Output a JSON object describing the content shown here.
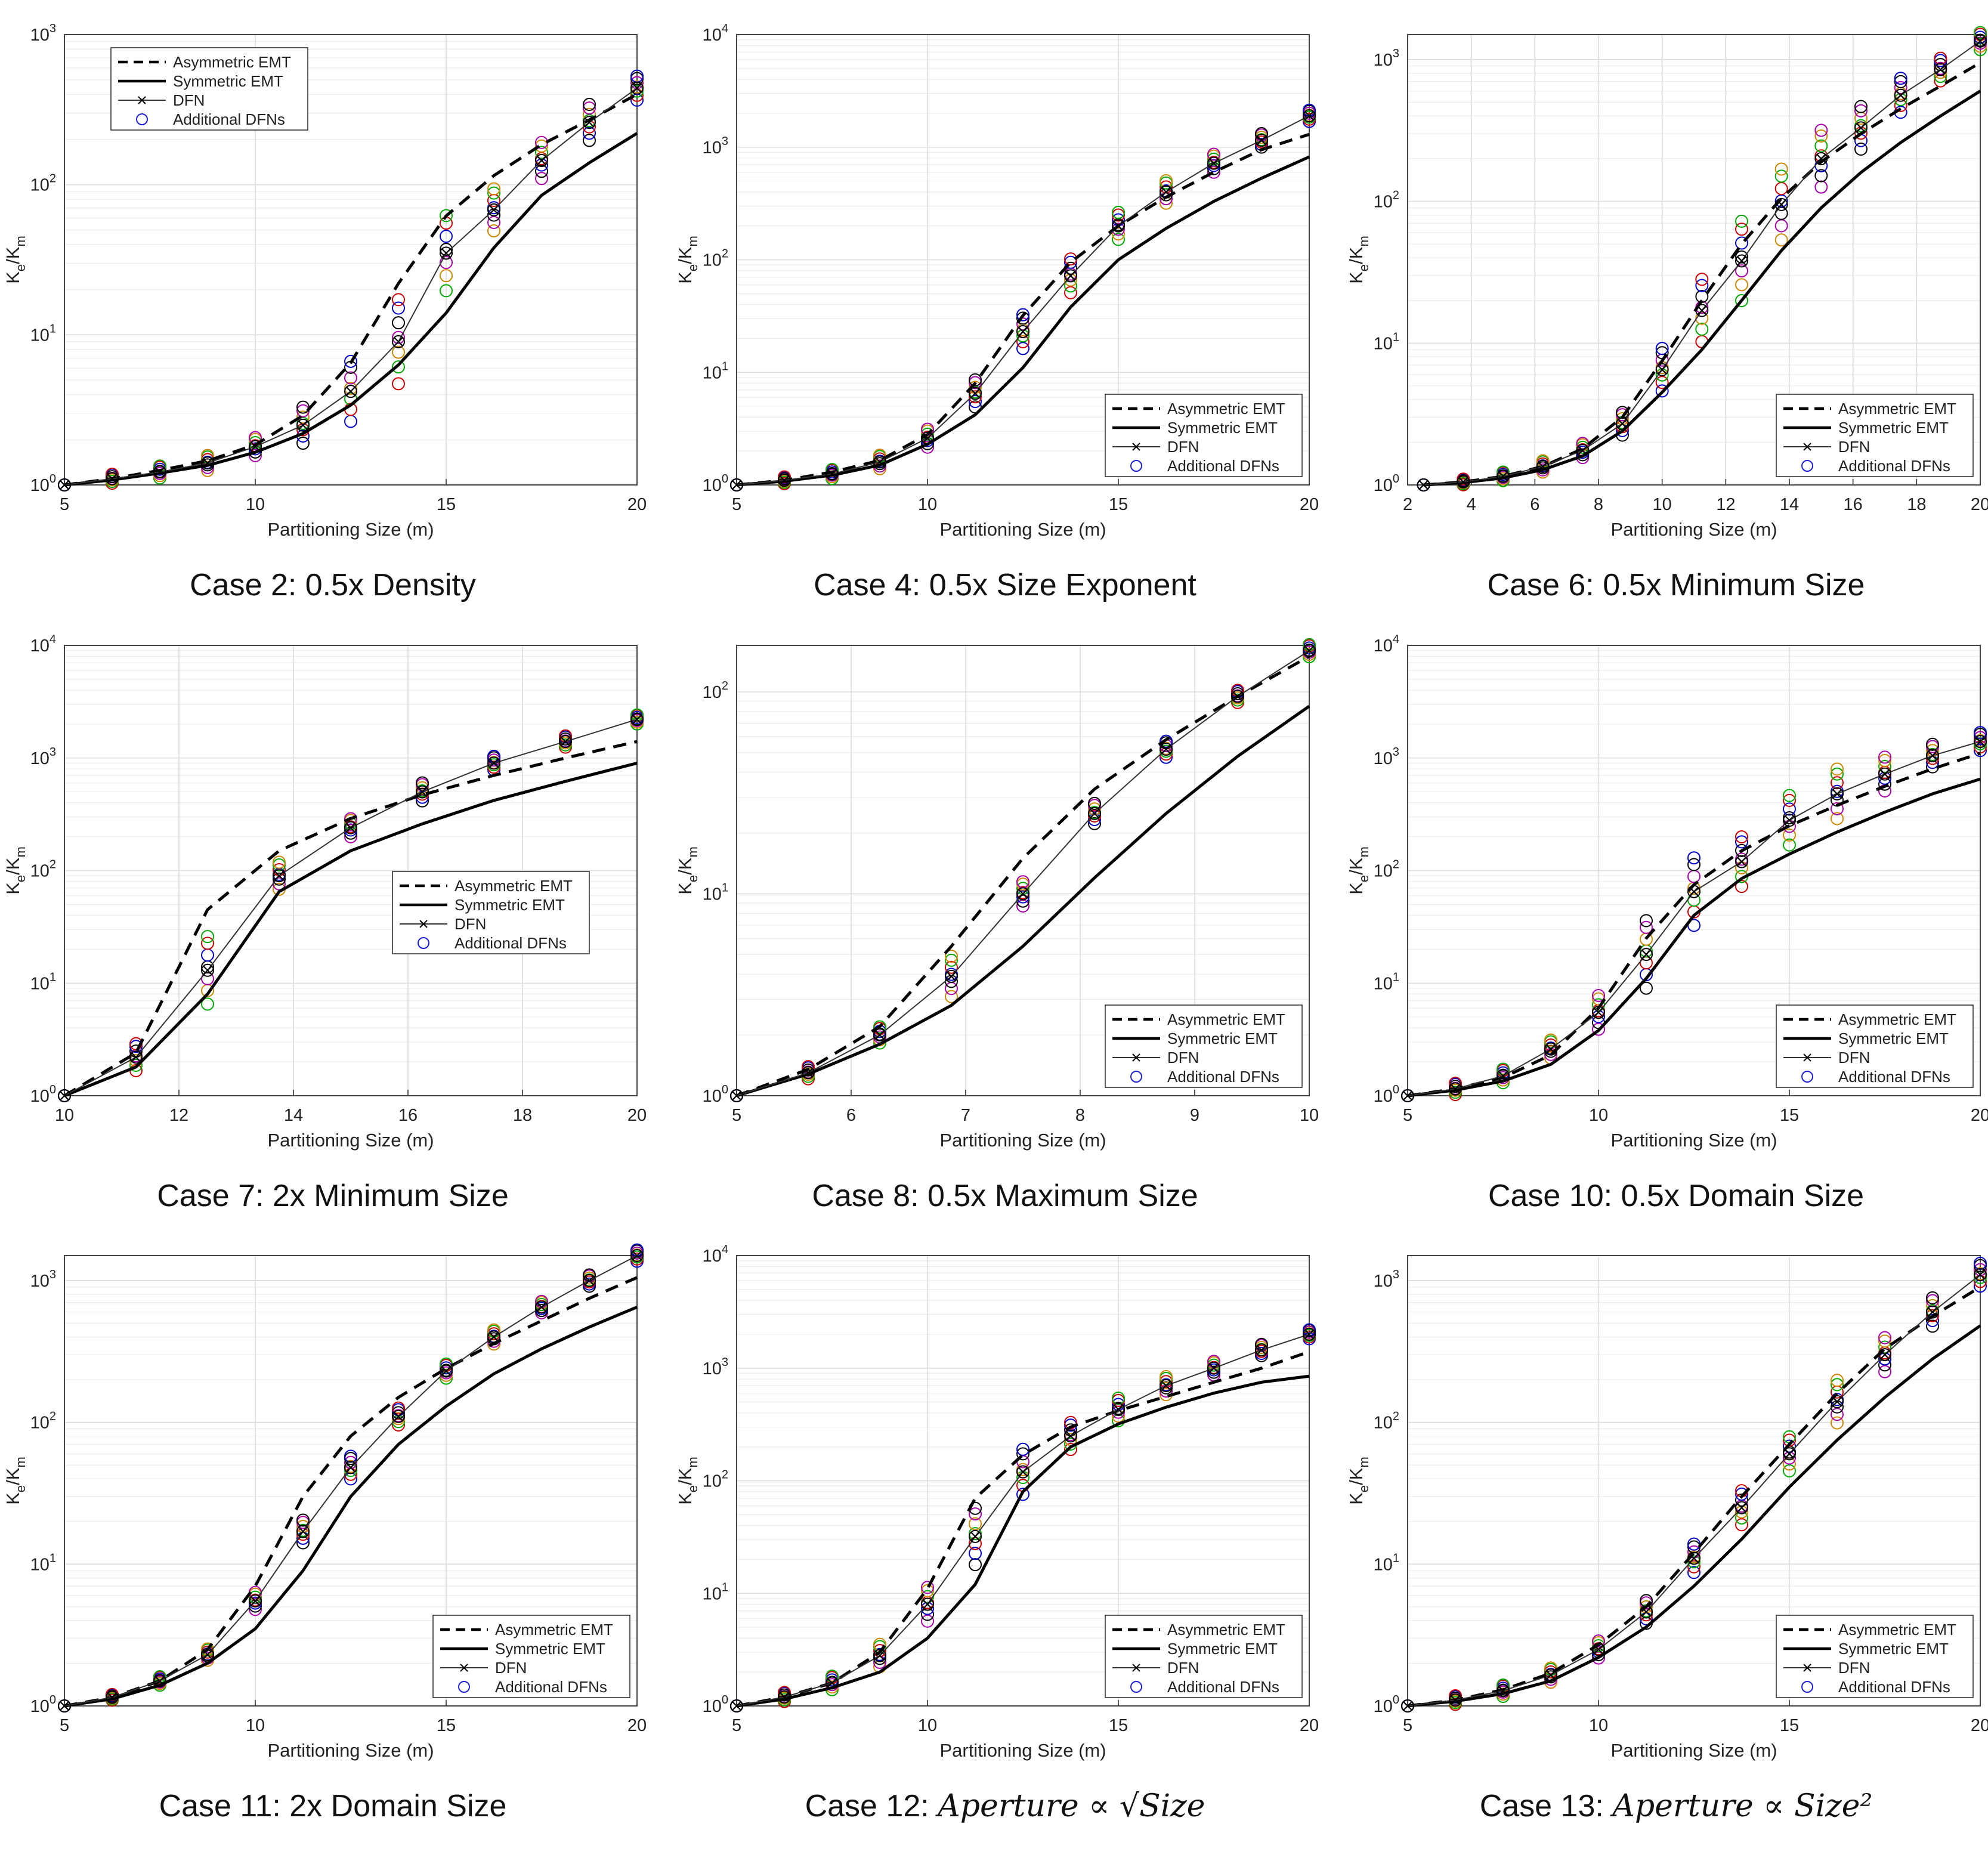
{
  "common": {
    "ylabel_main": "K",
    "ylabel_sub1": "e",
    "ylabel_mid": "/K",
    "ylabel_sub2": "m",
    "xlabel": "Partitioning Size (m)",
    "legend": [
      "Asymmetric EMT",
      "Symmetric EMT",
      "DFN",
      "Additional DFNs"
    ],
    "colors": {
      "emt": "#000000",
      "dfn": "#333333",
      "grid": "#dcdcdc",
      "extra": [
        "#0000cc",
        "#cc0000",
        "#00aa00",
        "#cc8800",
        "#aa00aa",
        "#000000"
      ]
    }
  },
  "chart_data": [
    {
      "id": "c2",
      "type": "line",
      "caption": "Case 2: 0.5x Density",
      "xlim": [
        5,
        20
      ],
      "xticks": [
        5,
        10,
        15,
        20
      ],
      "ylim": [
        1,
        1000
      ],
      "ytick_exp": [
        0,
        1,
        2,
        3
      ],
      "legend_position": "top-left",
      "x": [
        5,
        6.25,
        7.5,
        8.75,
        10,
        11.25,
        12.5,
        13.75,
        15,
        16.25,
        17.5,
        18.75,
        20
      ],
      "series": [
        {
          "name": "Asymmetric EMT",
          "values": [
            1,
            1.1,
            1.25,
            1.45,
            1.85,
            2.9,
            6.5,
            22,
            62,
            115,
            185,
            270,
            400
          ]
        },
        {
          "name": "Symmetric EMT",
          "values": [
            1,
            1.08,
            1.2,
            1.35,
            1.65,
            2.2,
            3.4,
            6.3,
            14,
            38,
            85,
            140,
            220
          ]
        },
        {
          "name": "DFN",
          "values": [
            1,
            1.1,
            1.22,
            1.4,
            1.8,
            2.5,
            4.2,
            9,
            35,
            68,
            145,
            260,
            440
          ]
        }
      ],
      "additional_dfn_spread": [
        0,
        0.03,
        0.04,
        0.05,
        0.06,
        0.12,
        0.2,
        0.28,
        0.25,
        0.14,
        0.12,
        0.12,
        0.08
      ]
    },
    {
      "id": "c4",
      "type": "line",
      "caption": "Case 4: 0.5x Size Exponent",
      "xlim": [
        5,
        20
      ],
      "xticks": [
        5,
        10,
        15,
        20
      ],
      "ylim": [
        1,
        10000
      ],
      "ytick_exp": [
        0,
        1,
        2,
        3,
        4
      ],
      "legend_position": "bottom-right",
      "x": [
        5,
        6.25,
        7.5,
        8.75,
        10,
        11.25,
        12.5,
        13.75,
        15,
        16.25,
        17.5,
        18.75,
        20
      ],
      "series": [
        {
          "name": "Asymmetric EMT",
          "values": [
            1,
            1.1,
            1.3,
            1.65,
            2.8,
            8,
            32,
            95,
            200,
            360,
            600,
            950,
            1300
          ]
        },
        {
          "name": "Symmetric EMT",
          "values": [
            1,
            1.08,
            1.22,
            1.5,
            2.3,
            4.2,
            11,
            38,
            100,
            190,
            330,
            530,
            820
          ]
        },
        {
          "name": "DFN",
          "values": [
            1,
            1.1,
            1.25,
            1.6,
            2.6,
            6.5,
            23,
            72,
            200,
            400,
            720,
            1150,
            1900
          ]
        }
      ],
      "additional_dfn_spread": [
        0,
        0.03,
        0.04,
        0.06,
        0.08,
        0.12,
        0.15,
        0.15,
        0.12,
        0.1,
        0.08,
        0.06,
        0.05
      ]
    },
    {
      "id": "c6",
      "type": "line",
      "caption": "Case 6: 0.5x Minimum Size",
      "xlim": [
        2,
        20
      ],
      "xticks": [
        2,
        4,
        6,
        8,
        10,
        12,
        14,
        16,
        18,
        20
      ],
      "ylim": [
        1,
        1500
      ],
      "ytick_exp": [
        0,
        1,
        2,
        3
      ],
      "legend_position": "bottom-right",
      "x": [
        2.5,
        3.75,
        5,
        6.25,
        7.5,
        8.75,
        10,
        11.25,
        12.5,
        13.75,
        15,
        16.25,
        17.5,
        18.75,
        20
      ],
      "series": [
        {
          "name": "Asymmetric EMT",
          "values": [
            1,
            1.05,
            1.15,
            1.35,
            1.8,
            3,
            7.5,
            20,
            50,
            105,
            190,
            300,
            450,
            650,
            950
          ]
        },
        {
          "name": "Symmetric EMT",
          "values": [
            1,
            1.04,
            1.12,
            1.28,
            1.6,
            2.4,
            4.5,
            9,
            20,
            45,
            90,
            160,
            260,
            400,
            600
          ]
        },
        {
          "name": "DFN",
          "values": [
            1,
            1.05,
            1.15,
            1.35,
            1.75,
            2.7,
            6.5,
            17,
            38,
            95,
            200,
            330,
            560,
            850,
            1350
          ]
        }
      ],
      "additional_dfn_spread": [
        0,
        0.02,
        0.03,
        0.04,
        0.05,
        0.08,
        0.15,
        0.22,
        0.28,
        0.25,
        0.2,
        0.15,
        0.12,
        0.08,
        0.06
      ]
    },
    {
      "id": "c7",
      "type": "line",
      "caption": "Case 7: 2x Minimum Size",
      "xlim": [
        10,
        20
      ],
      "xticks": [
        10,
        12,
        14,
        16,
        18,
        20
      ],
      "ylim": [
        1,
        10000
      ],
      "ytick_exp": [
        0,
        1,
        2,
        3,
        4
      ],
      "legend_position": "center-right",
      "x": [
        10,
        11.25,
        12.5,
        13.75,
        15,
        16.25,
        17.5,
        18.75,
        20
      ],
      "series": [
        {
          "name": "Asymmetric EMT",
          "values": [
            1,
            2.4,
            45,
            150,
            290,
            470,
            700,
            1000,
            1400
          ]
        },
        {
          "name": "Symmetric EMT",
          "values": [
            1,
            1.8,
            8,
            65,
            150,
            260,
            420,
            620,
            900
          ]
        },
        {
          "name": "DFN",
          "values": [
            1,
            2.2,
            13,
            90,
            240,
            500,
            900,
            1400,
            2200
          ]
        }
      ],
      "additional_dfn_spread": [
        0,
        0.12,
        0.3,
        0.12,
        0.08,
        0.08,
        0.06,
        0.05,
        0.04
      ]
    },
    {
      "id": "c8",
      "type": "line",
      "caption": "Case 8: 0.5x Maximum Size",
      "xlim": [
        5,
        10
      ],
      "xticks": [
        5,
        6,
        7,
        8,
        9,
        10
      ],
      "ylim": [
        1,
        170
      ],
      "ytick_exp": [
        0,
        1,
        2
      ],
      "legend_position": "bottom-right",
      "x": [
        5,
        5.625,
        6.25,
        6.875,
        7.5,
        8.125,
        8.75,
        9.375,
        10
      ],
      "series": [
        {
          "name": "Asymmetric EMT",
          "values": [
            1,
            1.35,
            2.2,
            5.5,
            15,
            33,
            58,
            95,
            150
          ]
        },
        {
          "name": "Symmetric EMT",
          "values": [
            1,
            1.28,
            1.8,
            2.8,
            5.5,
            12,
            25,
            48,
            85
          ]
        },
        {
          "name": "DFN",
          "values": [
            1,
            1.3,
            2.0,
            3.9,
            10,
            25,
            52,
            95,
            160
          ]
        }
      ],
      "additional_dfn_spread": [
        0,
        0.03,
        0.04,
        0.1,
        0.06,
        0.05,
        0.04,
        0.03,
        0.03
      ]
    },
    {
      "id": "c10",
      "type": "line",
      "caption": "Case 10: 0.5x Domain Size",
      "xlim": [
        5,
        20
      ],
      "xticks": [
        5,
        10,
        15,
        20
      ],
      "ylim": [
        1,
        10000
      ],
      "ytick_exp": [
        0,
        1,
        2,
        3,
        4
      ],
      "legend_position": "bottom-right",
      "x": [
        5,
        6.25,
        7.5,
        8.75,
        10,
        11.25,
        12.5,
        13.75,
        15,
        16.25,
        17.5,
        18.75,
        20
      ],
      "series": [
        {
          "name": "Asymmetric EMT",
          "values": [
            1,
            1.15,
            1.45,
            2.3,
            6,
            25,
            75,
            150,
            250,
            380,
            560,
            800,
            1100
          ]
        },
        {
          "name": "Symmetric EMT",
          "values": [
            1,
            1.12,
            1.35,
            1.9,
            3.8,
            11,
            40,
            85,
            140,
            220,
            330,
            480,
            650
          ]
        },
        {
          "name": "DFN",
          "values": [
            1,
            1.15,
            1.5,
            2.6,
            5.5,
            18,
            65,
            120,
            280,
            480,
            720,
            1050,
            1400
          ]
        }
      ],
      "additional_dfn_spread": [
        0,
        0.05,
        0.06,
        0.08,
        0.15,
        0.3,
        0.3,
        0.22,
        0.22,
        0.22,
        0.15,
        0.1,
        0.08
      ]
    },
    {
      "id": "c11",
      "type": "line",
      "caption": "Case 11: 2x Domain Size",
      "xlim": [
        5,
        20
      ],
      "xticks": [
        5,
        10,
        15,
        20
      ],
      "ylim": [
        1,
        1500
      ],
      "ytick_exp": [
        0,
        1,
        2,
        3
      ],
      "legend_position": "bottom-right",
      "x": [
        5,
        6.25,
        7.5,
        8.75,
        10,
        11.25,
        12.5,
        13.75,
        15,
        16.25,
        17.5,
        18.75,
        20
      ],
      "series": [
        {
          "name": "Asymmetric EMT",
          "values": [
            1,
            1.15,
            1.5,
            2.5,
            7,
            30,
            80,
            150,
            240,
            360,
            520,
            750,
            1050
          ]
        },
        {
          "name": "Symmetric EMT",
          "values": [
            1,
            1.12,
            1.4,
            2,
            3.5,
            9,
            30,
            70,
            130,
            220,
            330,
            470,
            650
          ]
        },
        {
          "name": "DFN",
          "values": [
            1,
            1.15,
            1.5,
            2.3,
            5.5,
            17,
            48,
            110,
            230,
            400,
            650,
            1000,
            1500
          ]
        }
      ],
      "additional_dfn_spread": [
        0,
        0.02,
        0.03,
        0.04,
        0.06,
        0.08,
        0.08,
        0.06,
        0.05,
        0.05,
        0.04,
        0.04,
        0.04
      ]
    },
    {
      "id": "c12",
      "type": "line",
      "caption_text": "Case 12: ",
      "caption_math": "Aperture ∝ √Size",
      "xlim": [
        5,
        20
      ],
      "xticks": [
        5,
        10,
        15,
        20
      ],
      "ylim": [
        1,
        10000
      ],
      "ytick_exp": [
        0,
        1,
        2,
        3,
        4
      ],
      "legend_position": "bottom-right",
      "x": [
        5,
        6.25,
        7.5,
        8.75,
        10,
        11.25,
        12.5,
        13.75,
        15,
        16.25,
        17.5,
        18.75,
        20
      ],
      "series": [
        {
          "name": "Asymmetric EMT",
          "values": [
            1,
            1.2,
            1.6,
            3,
            11,
            70,
            170,
            300,
            420,
            560,
            750,
            1000,
            1400
          ]
        },
        {
          "name": "Symmetric EMT",
          "values": [
            1,
            1.15,
            1.45,
            2,
            4,
            12,
            80,
            200,
            320,
            450,
            600,
            750,
            850
          ]
        },
        {
          "name": "DFN",
          "values": [
            1,
            1.2,
            1.6,
            2.8,
            8,
            32,
            120,
            250,
            430,
            700,
            1000,
            1450,
            2000
          ]
        }
      ],
      "additional_dfn_spread": [
        0,
        0.04,
        0.06,
        0.1,
        0.15,
        0.25,
        0.2,
        0.12,
        0.1,
        0.08,
        0.06,
        0.05,
        0.04
      ]
    },
    {
      "id": "c13",
      "type": "line",
      "caption_text": "Case 13: ",
      "caption_math": "Aperture ∝ Size²",
      "xlim": [
        5,
        20
      ],
      "xticks": [
        5,
        10,
        15,
        20
      ],
      "ylim": [
        1,
        1500
      ],
      "ytick_exp": [
        0,
        1,
        2,
        3
      ],
      "legend_position": "bottom-right",
      "x": [
        5,
        6.25,
        7.5,
        8.75,
        10,
        11.25,
        12.5,
        13.75,
        15,
        16.25,
        17.5,
        18.75,
        20
      ],
      "series": [
        {
          "name": "Asymmetric EMT",
          "values": [
            1,
            1.1,
            1.3,
            1.7,
            2.7,
            5,
            12,
            30,
            70,
            160,
            330,
            560,
            900
          ]
        },
        {
          "name": "Symmetric EMT",
          "values": [
            1,
            1.08,
            1.22,
            1.5,
            2.2,
            3.6,
            7,
            15,
            35,
            75,
            150,
            280,
            480
          ]
        },
        {
          "name": "DFN",
          "values": [
            1,
            1.1,
            1.28,
            1.65,
            2.5,
            4.6,
            11,
            25,
            60,
            140,
            300,
            600,
            1100
          ]
        }
      ],
      "additional_dfn_spread": [
        0,
        0.03,
        0.04,
        0.05,
        0.06,
        0.08,
        0.1,
        0.12,
        0.12,
        0.15,
        0.12,
        0.1,
        0.08
      ]
    }
  ]
}
